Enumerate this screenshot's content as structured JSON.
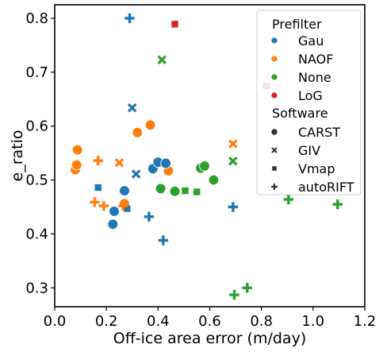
{
  "chart_data": {
    "type": "scatter",
    "title": "",
    "xlabel": "Off-ice area error (m/day)",
    "ylabel": "e_ratio",
    "xlim": [
      0.0,
      1.2
    ],
    "ylim": [
      0.265,
      0.825
    ],
    "xticks": [
      "0.0",
      "0.2",
      "0.4",
      "0.6",
      "0.8",
      "1.0",
      "1.2"
    ],
    "yticks": [
      "0.3",
      "0.4",
      "0.5",
      "0.6",
      "0.7",
      "0.8"
    ],
    "grid": false,
    "legend_position": "top-right",
    "hue_legend": {
      "title": "Prefilter",
      "entries": [
        {
          "label": "Gau",
          "color": "#1f77b4"
        },
        {
          "label": "NAOF",
          "color": "#ff7f0e"
        },
        {
          "label": "None",
          "color": "#2ca02c"
        },
        {
          "label": "LoG",
          "color": "#d62728"
        }
      ]
    },
    "style_legend": {
      "title": "Software",
      "entries": [
        {
          "label": "CARST",
          "marker": "circle"
        },
        {
          "label": "GIV",
          "marker": "x"
        },
        {
          "label": "Vmap",
          "marker": "square"
        },
        {
          "label": "autoRIFT",
          "marker": "plus"
        }
      ]
    },
    "points": [
      {
        "x": 0.08,
        "y": 0.519,
        "prefilter": "NAOF",
        "software": "CARST"
      },
      {
        "x": 0.085,
        "y": 0.528,
        "prefilter": "NAOF",
        "software": "CARST"
      },
      {
        "x": 0.088,
        "y": 0.556,
        "prefilter": "NAOF",
        "software": "CARST"
      },
      {
        "x": 0.32,
        "y": 0.588,
        "prefilter": "NAOF",
        "software": "CARST"
      },
      {
        "x": 0.37,
        "y": 0.602,
        "prefilter": "NAOF",
        "software": "CARST"
      },
      {
        "x": 0.44,
        "y": 0.517,
        "prefilter": "NAOF",
        "software": "CARST"
      },
      {
        "x": 0.27,
        "y": 0.456,
        "prefilter": "NAOF",
        "software": "CARST"
      },
      {
        "x": 0.23,
        "y": 0.442,
        "prefilter": "Gau",
        "software": "CARST"
      },
      {
        "x": 0.225,
        "y": 0.418,
        "prefilter": "Gau",
        "software": "CARST"
      },
      {
        "x": 0.27,
        "y": 0.48,
        "prefilter": "Gau",
        "software": "CARST"
      },
      {
        "x": 0.38,
        "y": 0.521,
        "prefilter": "Gau",
        "software": "CARST"
      },
      {
        "x": 0.4,
        "y": 0.533,
        "prefilter": "Gau",
        "software": "CARST"
      },
      {
        "x": 0.43,
        "y": 0.531,
        "prefilter": "Gau",
        "software": "CARST"
      },
      {
        "x": 0.41,
        "y": 0.484,
        "prefilter": "None",
        "software": "CARST"
      },
      {
        "x": 0.465,
        "y": 0.479,
        "prefilter": "None",
        "software": "CARST"
      },
      {
        "x": 0.565,
        "y": 0.522,
        "prefilter": "None",
        "software": "CARST"
      },
      {
        "x": 0.58,
        "y": 0.526,
        "prefilter": "None",
        "software": "CARST"
      },
      {
        "x": 0.615,
        "y": 0.5,
        "prefilter": "None",
        "software": "CARST"
      },
      {
        "x": 0.3,
        "y": 0.634,
        "prefilter": "Gau",
        "software": "GIV"
      },
      {
        "x": 0.315,
        "y": 0.511,
        "prefilter": "Gau",
        "software": "GIV"
      },
      {
        "x": 0.25,
        "y": 0.532,
        "prefilter": "NAOF",
        "software": "GIV"
      },
      {
        "x": 0.69,
        "y": 0.567,
        "prefilter": "NAOF",
        "software": "GIV"
      },
      {
        "x": 0.415,
        "y": 0.723,
        "prefilter": "None",
        "software": "GIV"
      },
      {
        "x": 0.69,
        "y": 0.535,
        "prefilter": "None",
        "software": "GIV"
      },
      {
        "x": 0.168,
        "y": 0.486,
        "prefilter": "Gau",
        "software": "Vmap"
      },
      {
        "x": 0.28,
        "y": 0.447,
        "prefilter": "Gau",
        "software": "Vmap"
      },
      {
        "x": 0.505,
        "y": 0.48,
        "prefilter": "None",
        "software": "Vmap"
      },
      {
        "x": 0.55,
        "y": 0.478,
        "prefilter": "None",
        "software": "Vmap"
      },
      {
        "x": 0.465,
        "y": 0.789,
        "prefilter": "LoG",
        "software": "Vmap"
      },
      {
        "x": 0.82,
        "y": 0.674,
        "prefilter": "LoG",
        "software": "Vmap"
      },
      {
        "x": 0.29,
        "y": 0.8,
        "prefilter": "Gau",
        "software": "autoRIFT"
      },
      {
        "x": 0.365,
        "y": 0.432,
        "prefilter": "Gau",
        "software": "autoRIFT"
      },
      {
        "x": 0.42,
        "y": 0.388,
        "prefilter": "Gau",
        "software": "autoRIFT"
      },
      {
        "x": 0.69,
        "y": 0.45,
        "prefilter": "Gau",
        "software": "autoRIFT"
      },
      {
        "x": 0.168,
        "y": 0.536,
        "prefilter": "NAOF",
        "software": "autoRIFT"
      },
      {
        "x": 0.155,
        "y": 0.459,
        "prefilter": "NAOF",
        "software": "autoRIFT"
      },
      {
        "x": 0.19,
        "y": 0.452,
        "prefilter": "NAOF",
        "software": "autoRIFT"
      },
      {
        "x": 0.265,
        "y": 0.452,
        "prefilter": "NAOF",
        "software": "autoRIFT"
      },
      {
        "x": 0.695,
        "y": 0.287,
        "prefilter": "None",
        "software": "autoRIFT"
      },
      {
        "x": 0.745,
        "y": 0.3,
        "prefilter": "None",
        "software": "autoRIFT"
      },
      {
        "x": 0.905,
        "y": 0.464,
        "prefilter": "None",
        "software": "autoRIFT"
      },
      {
        "x": 1.095,
        "y": 0.455,
        "prefilter": "None",
        "software": "autoRIFT"
      }
    ]
  }
}
